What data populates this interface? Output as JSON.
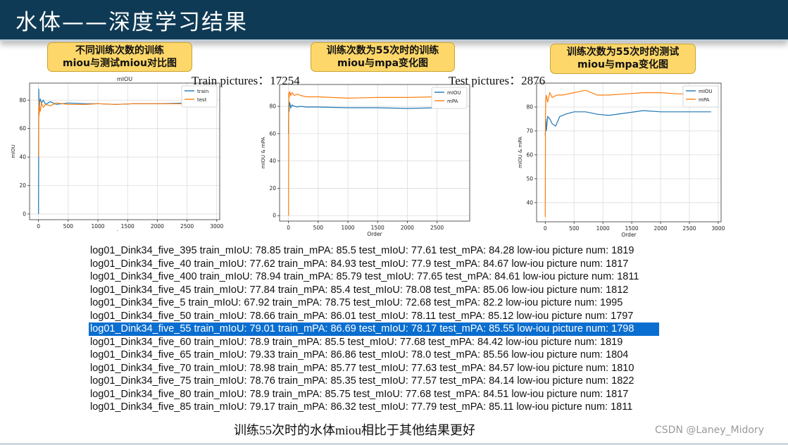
{
  "slide": {
    "title": "水体——深度学习结果",
    "callouts": [
      {
        "line1": "不同训练次数的训练",
        "line2": "miou与测试miou对比图"
      },
      {
        "line1": "训练次数为55次时的训练",
        "line2": "miou与mpa变化图"
      },
      {
        "line1": "训练次数为55次时的测试",
        "line2": "miou与mpa变化图"
      }
    ],
    "train_pictures": "Train pictures：17254",
    "test_pictures": "Test pictures：2876",
    "caption": "训练55次时的水体miou相比于其他结果更好",
    "watermark": "CSDN @Laney_Midory"
  },
  "colors": {
    "blue": "#1f77b4",
    "orange": "#ff7f0e",
    "selection": "#0a6ed0",
    "title_bg": "#0f3a55"
  },
  "log_lines": [
    {
      "text": "log01_Dink34_five_395  train_mIoU:  78.85  train_mPA:  85.5  test_mIoU:  77.61  test_mPA:  84.28  low-iou picture num:  1819"
    },
    {
      "text": "log01_Dink34_five_40  train_mIoU:  77.62  train_mPA:  84.93  test_mIoU:  77.9  test_mPA:  84.67  low-iou picture num:  1817"
    },
    {
      "text": "log01_Dink34_five_400  train_mIoU:  78.94  train_mPA:  85.79  test_mIoU:  77.65  test_mPA:  84.61  low-iou picture num:  1811"
    },
    {
      "text": "log01_Dink34_five_45  train_mIoU:  77.84  train_mPA:  85.4  test_mIoU:  78.08  test_mPA:  85.06  low-iou picture num:  1812"
    },
    {
      "text": "log01_Dink34_five_5  train_mIoU:  67.92  train_mPA:  78.75  test_mIoU:  72.68  test_mPA:  82.2  low-iou picture num:  1995"
    },
    {
      "text": "log01_Dink34_five_50  train_mIoU:  78.66  train_mPA:  86.01  test_mIoU:  78.11  test_mPA:  85.12  low-iou picture num:  1797"
    },
    {
      "text": "log01_Dink34_five_55  train_mIoU:  79.01  train_mPA:  86.69  test_mIoU:  78.17  test_mPA:  85.55  low-iou picture num:  1798",
      "selected": true
    },
    {
      "text": "log01_Dink34_five_60  train_mIoU:  78.9  train_mPA:  85.5  test_mIoU:  77.68  test_mPA:  84.42  low-iou picture num:  1819"
    },
    {
      "text": "log01_Dink34_five_65  train_mIoU:  79.33  train_mPA:  86.86  test_mIoU:  78.0  test_mPA:  85.56  low-iou picture num:  1804"
    },
    {
      "text": "log01_Dink34_five_70  train_mIoU:  78.98  train_mPA:  85.77  test_mIoU:  77.63  test_mPA:  84.57  low-iou picture num:  1810"
    },
    {
      "text": "log01_Dink34_five_75  train_mIoU:  78.76  train_mPA:  85.35  test_mIoU:  77.57  test_mPA:  84.14  low-iou picture num:  1822"
    },
    {
      "text": "log01_Dink34_five_80  train_mIoU:  78.9  train_mPA:  85.75  test_mIoU:  77.68  test_mPA:  84.51  low-iou picture num:  1817"
    },
    {
      "text": "log01_Dink34_five_85  train_mIoU:  79.17  train_mPA:  86.32  test_mIoU:  77.79  test_mPA:  85.11  low-iou picture num:  1811"
    }
  ],
  "chart_data": [
    {
      "type": "line",
      "title": "mIOU",
      "xlabel": "image",
      "ylabel": "mIOU",
      "xlim": [
        -150,
        3050
      ],
      "ylim": [
        -4,
        92
      ],
      "xticks": [
        0,
        500,
        1000,
        1500,
        2000,
        2500,
        3000
      ],
      "yticks": [
        0,
        20,
        40,
        60,
        80
      ],
      "legend": "top-right",
      "series": [
        {
          "name": "train",
          "color": "#1f77b4",
          "x": [
            0,
            5,
            10,
            20,
            30,
            50,
            80,
            120,
            200,
            300,
            500,
            800,
            1000,
            1300,
            1600,
            2000,
            2500,
            2876
          ],
          "y": [
            0,
            88,
            70,
            79,
            81,
            78,
            80,
            77,
            79,
            77,
            78,
            77.5,
            77.5,
            77,
            77.5,
            77.5,
            78,
            78
          ]
        },
        {
          "name": "test",
          "color": "#ff7f0e",
          "x": [
            0,
            5,
            10,
            20,
            30,
            50,
            80,
            120,
            200,
            300,
            500,
            800,
            1000,
            1300,
            1600,
            2000,
            2500,
            2876
          ],
          "y": [
            40,
            80,
            69,
            75,
            72,
            78,
            75,
            77,
            76,
            78,
            77,
            77,
            77.5,
            77,
            77.5,
            77.5,
            77.5,
            77.5
          ]
        }
      ]
    },
    {
      "type": "line",
      "title": "",
      "xlabel": "Order",
      "ylabel": "mIOU & mPA",
      "xlim": [
        -150,
        3050
      ],
      "ylim": [
        -4,
        96
      ],
      "xticks": [
        0,
        500,
        1000,
        1500,
        2000,
        2500
      ],
      "yticks": [
        0,
        20,
        40,
        60,
        80
      ],
      "legend": "top-right",
      "series": [
        {
          "name": "mIOU",
          "color": "#1f77b4",
          "x": [
            0,
            5,
            10,
            20,
            40,
            60,
            100,
            150,
            200,
            300,
            500,
            1000,
            1500,
            2000,
            2500,
            2876
          ],
          "y": [
            60,
            85,
            76,
            83,
            79,
            81,
            80,
            79.5,
            80,
            79.5,
            79.5,
            79,
            79,
            78.5,
            79,
            79
          ]
        },
        {
          "name": "mPA",
          "color": "#ff7f0e",
          "x": [
            0,
            5,
            10,
            20,
            40,
            60,
            100,
            150,
            200,
            300,
            500,
            1000,
            1500,
            2000,
            2500,
            2876
          ],
          "y": [
            0,
            90,
            86,
            91,
            88,
            90,
            88,
            89,
            88,
            87,
            87,
            86,
            86.5,
            86.5,
            87,
            87
          ]
        }
      ]
    },
    {
      "type": "line",
      "title": "",
      "xlabel": "Order",
      "ylabel": "mIOU & mPA",
      "xlim": [
        -150,
        3050
      ],
      "ylim": [
        32,
        90
      ],
      "xticks": [
        0,
        500,
        1000,
        1500,
        2000,
        2500,
        3000
      ],
      "yticks": [
        40,
        50,
        60,
        70,
        80
      ],
      "legend": "top-right",
      "series": [
        {
          "name": "mIOU",
          "color": "#1f77b4",
          "x": [
            0,
            10,
            20,
            40,
            80,
            120,
            180,
            250,
            350,
            500,
            700,
            900,
            1100,
            1400,
            1700,
            2000,
            2300,
            2600,
            2876
          ],
          "y": [
            68,
            75,
            70,
            76,
            75,
            73,
            72,
            76,
            77,
            78,
            78,
            77,
            76.5,
            77.5,
            78.5,
            78,
            78,
            78,
            78
          ]
        },
        {
          "name": "mPA",
          "color": "#ff7f0e",
          "x": [
            0,
            5,
            10,
            20,
            40,
            80,
            120,
            200,
            300,
            500,
            700,
            900,
            1100,
            1400,
            1700,
            2000,
            2300,
            2600,
            2876
          ],
          "y": [
            34,
            78,
            83,
            85,
            82,
            86,
            84,
            85,
            85,
            86,
            87,
            85,
            85,
            85.5,
            86,
            86,
            85.5,
            85.5,
            86
          ]
        }
      ]
    }
  ]
}
